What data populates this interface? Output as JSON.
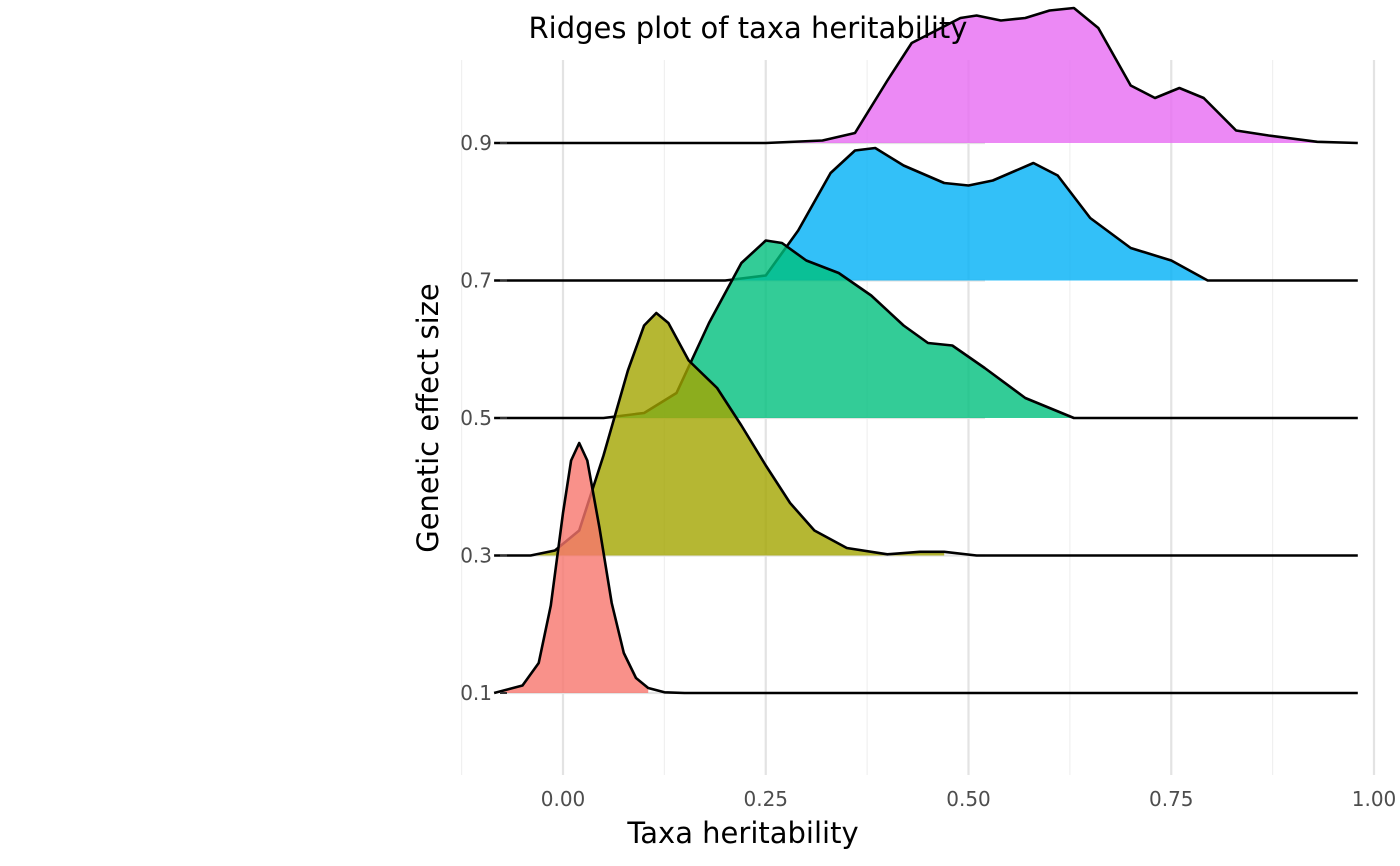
{
  "chart_data": {
    "type": "ridgeline",
    "title": "Ridges plot of taxa heritability",
    "xlabel": "Taxa heritability",
    "ylabel": "Genetic effect size",
    "xlim": [
      -0.125,
      1.0
    ],
    "x_ticks": [
      "0.00",
      "0.25",
      "0.50",
      "0.75",
      "1.00"
    ],
    "x_tick_values": [
      0.0,
      0.25,
      0.5,
      0.75,
      1.0
    ],
    "y_ticks": [
      "0.1",
      "0.3",
      "0.5",
      "0.7",
      "0.9"
    ],
    "grid": true,
    "legend": "none",
    "series": [
      {
        "category": "0.1",
        "color": "#F8766D",
        "fill_max_x": 0.115,
        "density": [
          [
            -0.085,
            0.0
          ],
          [
            -0.05,
            0.03
          ],
          [
            -0.03,
            0.12
          ],
          [
            -0.015,
            0.35
          ],
          [
            0.0,
            0.72
          ],
          [
            0.01,
            0.93
          ],
          [
            0.02,
            1.0
          ],
          [
            0.03,
            0.93
          ],
          [
            0.045,
            0.66
          ],
          [
            0.06,
            0.36
          ],
          [
            0.075,
            0.16
          ],
          [
            0.09,
            0.06
          ],
          [
            0.105,
            0.02
          ],
          [
            0.125,
            0.003
          ],
          [
            0.15,
            0.0
          ],
          [
            0.98,
            0.0
          ]
        ]
      },
      {
        "category": "0.3",
        "color": "#A3A500",
        "fill_max_x": 0.47,
        "density": [
          [
            -0.085,
            0.0
          ],
          [
            -0.04,
            0.0
          ],
          [
            -0.01,
            0.02
          ],
          [
            0.02,
            0.1
          ],
          [
            0.05,
            0.4
          ],
          [
            0.08,
            0.74
          ],
          [
            0.1,
            0.92
          ],
          [
            0.115,
            0.97
          ],
          [
            0.13,
            0.93
          ],
          [
            0.155,
            0.78
          ],
          [
            0.19,
            0.67
          ],
          [
            0.22,
            0.52
          ],
          [
            0.25,
            0.36
          ],
          [
            0.28,
            0.21
          ],
          [
            0.31,
            0.1
          ],
          [
            0.35,
            0.03
          ],
          [
            0.4,
            0.005
          ],
          [
            0.44,
            0.015
          ],
          [
            0.47,
            0.015
          ],
          [
            0.51,
            0.0
          ],
          [
            0.98,
            0.0
          ]
        ]
      },
      {
        "category": "0.5",
        "color": "#00BF7D",
        "fill_max_x": 0.63,
        "density": [
          [
            -0.085,
            0.0
          ],
          [
            0.05,
            0.0
          ],
          [
            0.1,
            0.02
          ],
          [
            0.14,
            0.1
          ],
          [
            0.18,
            0.38
          ],
          [
            0.22,
            0.62
          ],
          [
            0.25,
            0.71
          ],
          [
            0.27,
            0.7
          ],
          [
            0.3,
            0.63
          ],
          [
            0.34,
            0.58
          ],
          [
            0.38,
            0.49
          ],
          [
            0.42,
            0.37
          ],
          [
            0.45,
            0.3
          ],
          [
            0.48,
            0.29
          ],
          [
            0.52,
            0.2
          ],
          [
            0.57,
            0.08
          ],
          [
            0.63,
            0.0
          ],
          [
            0.98,
            0.0
          ]
        ]
      },
      {
        "category": "0.7",
        "color": "#00B0F6",
        "fill_max_x": 0.795,
        "density": [
          [
            -0.085,
            0.0
          ],
          [
            0.2,
            0.0
          ],
          [
            0.25,
            0.02
          ],
          [
            0.29,
            0.2
          ],
          [
            0.33,
            0.43
          ],
          [
            0.36,
            0.52
          ],
          [
            0.385,
            0.53
          ],
          [
            0.42,
            0.46
          ],
          [
            0.47,
            0.39
          ],
          [
            0.5,
            0.38
          ],
          [
            0.53,
            0.4
          ],
          [
            0.58,
            0.47
          ],
          [
            0.61,
            0.42
          ],
          [
            0.65,
            0.25
          ],
          [
            0.7,
            0.13
          ],
          [
            0.75,
            0.08
          ],
          [
            0.795,
            0.0
          ],
          [
            0.98,
            0.0
          ]
        ]
      },
      {
        "category": "0.9",
        "color": "#E76BF3",
        "fill_max_x": 0.93,
        "density": [
          [
            -0.085,
            0.0
          ],
          [
            0.25,
            0.0
          ],
          [
            0.32,
            0.01
          ],
          [
            0.36,
            0.04
          ],
          [
            0.4,
            0.25
          ],
          [
            0.43,
            0.4
          ],
          [
            0.46,
            0.45
          ],
          [
            0.49,
            0.5
          ],
          [
            0.51,
            0.51
          ],
          [
            0.54,
            0.49
          ],
          [
            0.57,
            0.5
          ],
          [
            0.6,
            0.53
          ],
          [
            0.63,
            0.54
          ],
          [
            0.66,
            0.46
          ],
          [
            0.7,
            0.23
          ],
          [
            0.73,
            0.18
          ],
          [
            0.76,
            0.22
          ],
          [
            0.79,
            0.18
          ],
          [
            0.83,
            0.05
          ],
          [
            0.87,
            0.03
          ],
          [
            0.93,
            0.005
          ],
          [
            0.98,
            0.0
          ]
        ]
      }
    ]
  }
}
